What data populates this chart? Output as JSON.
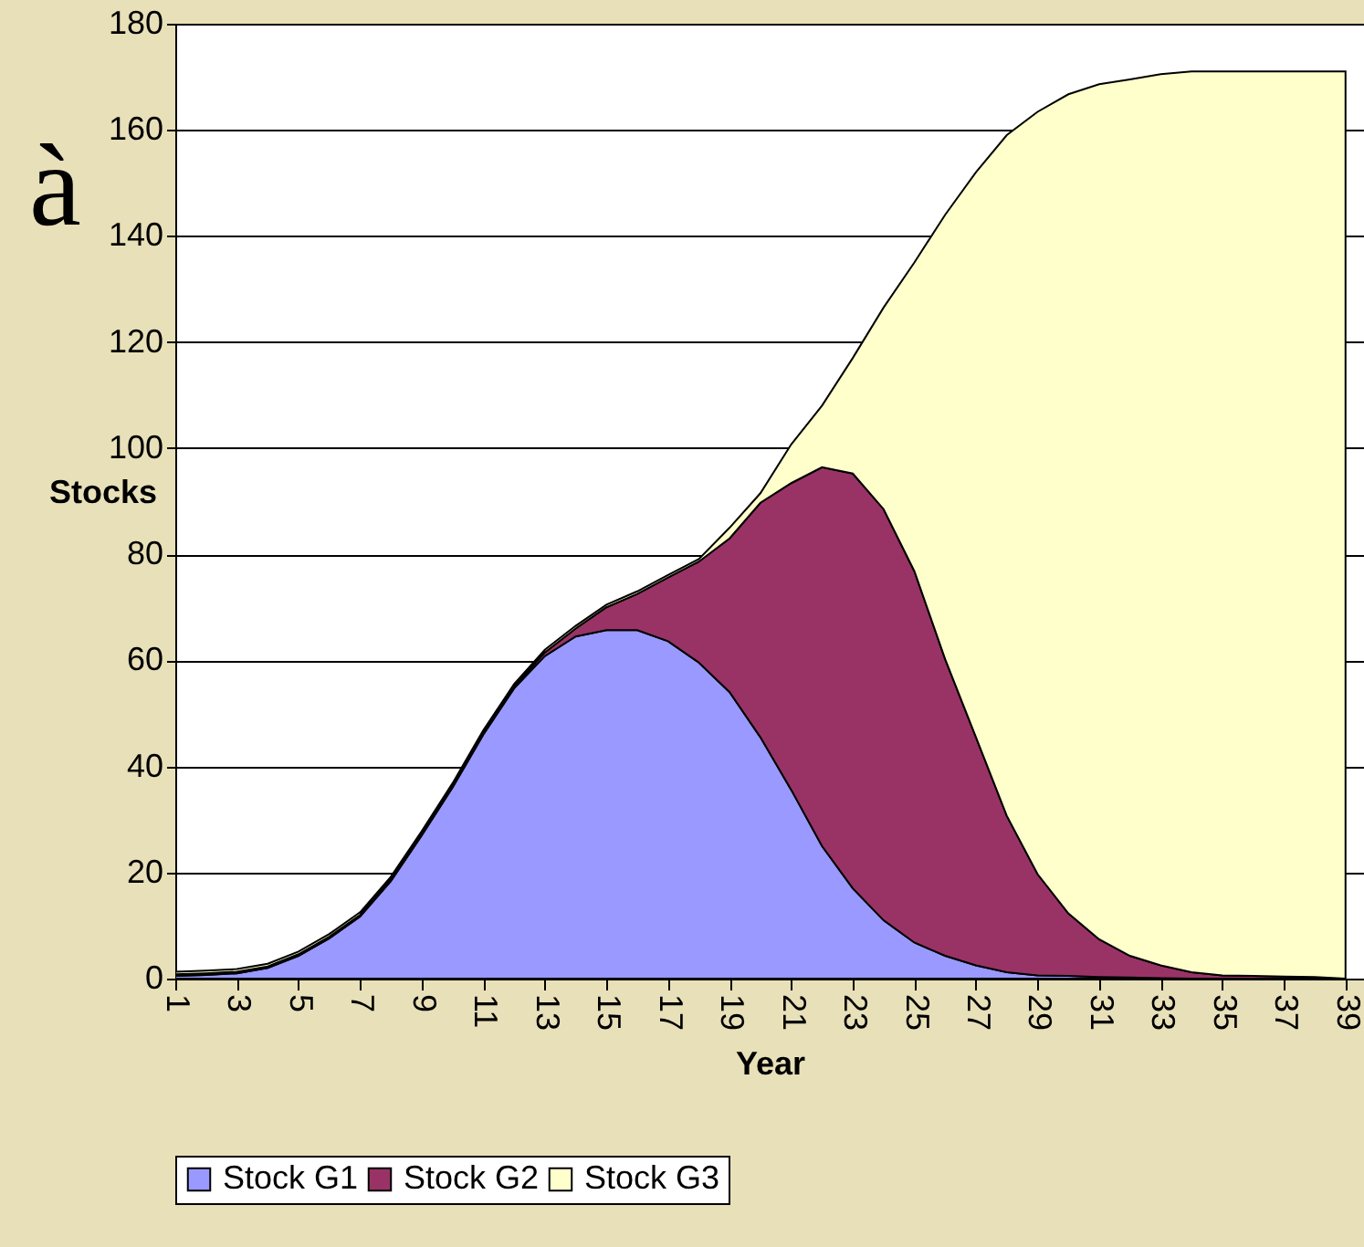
{
  "chart_data": {
    "type": "area",
    "stacked": true,
    "xlabel": "Year",
    "ylabel": "Stocks",
    "annotations": [
      "à"
    ],
    "categories": [
      "1",
      null,
      "3",
      null,
      "5",
      null,
      "7",
      null,
      "9",
      null,
      "11",
      null,
      "13",
      null,
      "15",
      null,
      "17",
      null,
      "19",
      null,
      "21",
      null,
      "23",
      null,
      "25",
      null,
      "27",
      null,
      "29",
      null,
      "31",
      null,
      "33",
      null,
      "35",
      null,
      "37",
      null,
      "39"
    ],
    "series": [
      {
        "name": "Stock G1",
        "color": "#9999ff",
        "values": [
          0.5,
          0.7,
          1,
          2,
          4.3,
          7.6,
          11.7,
          18.4,
          27,
          36,
          46,
          54.7,
          60.8,
          64.5,
          65.7,
          65.7,
          63.6,
          59.6,
          54,
          45.5,
          35.6,
          25,
          17,
          11,
          6.8,
          4.3,
          2.5,
          1.2,
          0.6,
          0.5,
          0.3,
          0.2,
          0.1,
          0,
          0,
          0,
          0,
          0,
          0
        ]
      },
      {
        "name": "Stock G2",
        "color": "#993366",
        "values": [
          0.3,
          0.3,
          0.3,
          0.3,
          0.3,
          0.3,
          0.3,
          0.3,
          0.3,
          0.3,
          0.3,
          0.3,
          0.7,
          1.5,
          4.3,
          6.8,
          12,
          19,
          29,
          44.2,
          57.8,
          71.4,
          78.2,
          77.5,
          70,
          55.9,
          43,
          29.5,
          19.1,
          11.8,
          7.1,
          4.1,
          2.4,
          1.2,
          0.6,
          0.5,
          0.4,
          0.3,
          0
        ]
      },
      {
        "name": "Stock G3",
        "color": "#ffffcc",
        "values": [
          0.5,
          0.5,
          0.5,
          0.5,
          0.5,
          0.5,
          0.5,
          0.5,
          0.5,
          0.5,
          0.5,
          0.5,
          0.5,
          0.5,
          0.5,
          0.5,
          0.5,
          0.5,
          2,
          1.8,
          7.3,
          11.6,
          21.8,
          38,
          58.2,
          83.8,
          106.5,
          128.3,
          143.7,
          154.4,
          161.2,
          165.2,
          168,
          169.8,
          170.4,
          170.5,
          170.6,
          170.7,
          171
        ]
      }
    ],
    "ylim": [
      0,
      180
    ],
    "yticks": [
      0,
      20,
      40,
      60,
      80,
      100,
      120,
      140,
      160,
      180
    ],
    "grid": "y",
    "legend": "bottom"
  }
}
